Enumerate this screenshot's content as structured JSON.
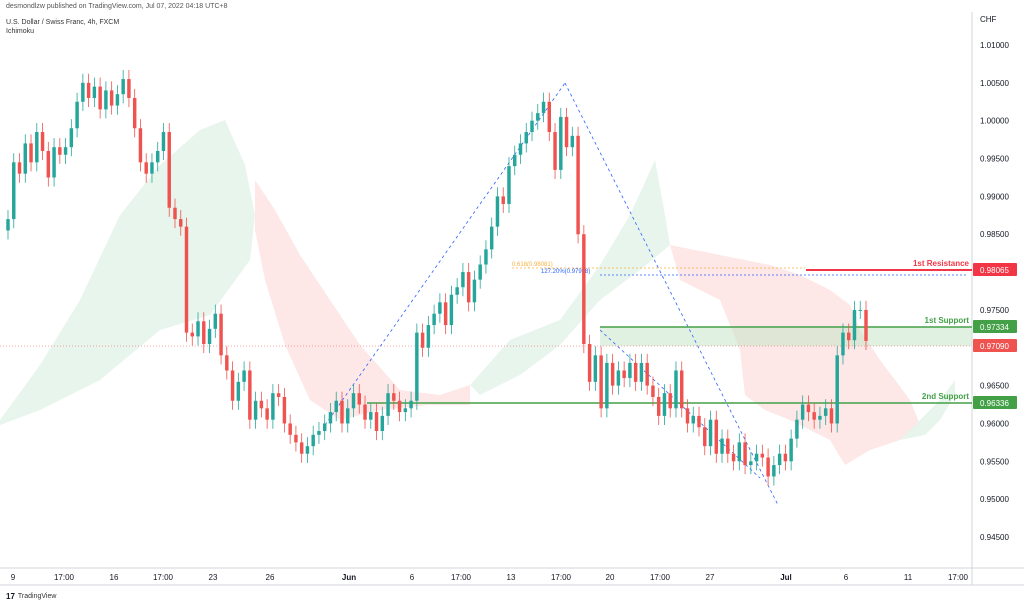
{
  "header": {
    "published_by": "desmondlzw published on TradingView.com, Jul 07, 2022 04:18 UTC+8",
    "symbol": "U.S. Dollar / Swiss Franc, 4h, FXCM",
    "indicator": "Ichimoku"
  },
  "footer": {
    "logo_glyph": "17",
    "brand": "TradingView"
  },
  "colors": {
    "up": "#26a69a",
    "down": "#ef5350",
    "resistance": "#f23645",
    "support": "#43a047",
    "cloud_bull": "#e6f4ea",
    "cloud_bear": "#fde4e4",
    "fib_line": "#2962ff"
  },
  "chart_data": {
    "type": "candlestick",
    "currency": "CHF",
    "ylim": [
      0.9415,
      1.0125
    ],
    "y_ticks": [
      "1.01000",
      "1.00500",
      "1.00000",
      "0.99500",
      "0.99000",
      "0.98500",
      "0.98000",
      "0.97500",
      "0.97000",
      "0.96500",
      "0.96000",
      "0.95500",
      "0.95000",
      "0.94500"
    ],
    "x_ticks": [
      "9",
      "17:00",
      "16",
      "17:00",
      "23",
      "26",
      "Jun",
      "6",
      "17:00",
      "13",
      "17:00",
      "20",
      "17:00",
      "27",
      "Jul",
      "6",
      "11",
      "17:00"
    ],
    "x_bold": [
      "Jun",
      "Jul"
    ],
    "close_series": [
      0.987,
      0.9945,
      0.993,
      0.997,
      0.9945,
      0.9985,
      0.996,
      0.9925,
      0.9965,
      0.9955,
      0.9965,
      0.999,
      1.0025,
      1.005,
      1.003,
      1.0045,
      1.0015,
      1.004,
      1.002,
      1.0035,
      1.0055,
      1.003,
      0.999,
      0.9945,
      0.993,
      0.9945,
      0.996,
      0.9985,
      0.9885,
      0.987,
      0.986,
      0.972,
      0.9715,
      0.9735,
      0.9705,
      0.9725,
      0.9745,
      0.969,
      0.967,
      0.963,
      0.9655,
      0.967,
      0.9605,
      0.963,
      0.962,
      0.9605,
      0.964,
      0.9635,
      0.96,
      0.9585,
      0.9575,
      0.956,
      0.957,
      0.9585,
      0.959,
      0.96,
      0.9615,
      0.963,
      0.96,
      0.962,
      0.964,
      0.9625,
      0.9605,
      0.9615,
      0.959,
      0.961,
      0.964,
      0.963,
      0.9615,
      0.962,
      0.963,
      0.972,
      0.97,
      0.973,
      0.9745,
      0.976,
      0.973,
      0.977,
      0.978,
      0.98,
      0.976,
      0.979,
      0.981,
      0.983,
      0.986,
      0.99,
      0.989,
      0.994,
      0.9955,
      0.997,
      0.9985,
      1.0,
      1.001,
      1.0025,
      0.9985,
      0.9935,
      1.0005,
      0.9965,
      0.998,
      0.985,
      0.9705,
      0.9655,
      0.969,
      0.962,
      0.968,
      0.965,
      0.967,
      0.966,
      0.968,
      0.9655,
      0.968,
      0.965,
      0.9635,
      0.961,
      0.964,
      0.962,
      0.967,
      0.962,
      0.96,
      0.961,
      0.9595,
      0.957,
      0.9605,
      0.956,
      0.958,
      0.956,
      0.955,
      0.9575,
      0.9545,
      0.955,
      0.956,
      0.9555,
      0.953,
      0.9545,
      0.956,
      0.955,
      0.958,
      0.9605,
      0.9625,
      0.9615,
      0.9605,
      0.961,
      0.962,
      0.96,
      0.969,
      0.972,
      0.971,
      0.975,
      0.975,
      0.9709
    ],
    "levels": [
      {
        "name": "1st Resistance",
        "value": 0.98065,
        "tag": "0.98065",
        "type": "resistance"
      },
      {
        "name": "1st Support",
        "value": 0.97334,
        "tag": "0.97334",
        "type": "support"
      },
      {
        "name": "2nd Support",
        "value": 0.96336,
        "tag": "0.96336",
        "type": "support"
      }
    ],
    "current_price": {
      "value": 0.9709,
      "tag": "0.97090"
    },
    "fib_labels": [
      "0.618(0.98081)",
      "127.20%(0.97998)"
    ]
  }
}
